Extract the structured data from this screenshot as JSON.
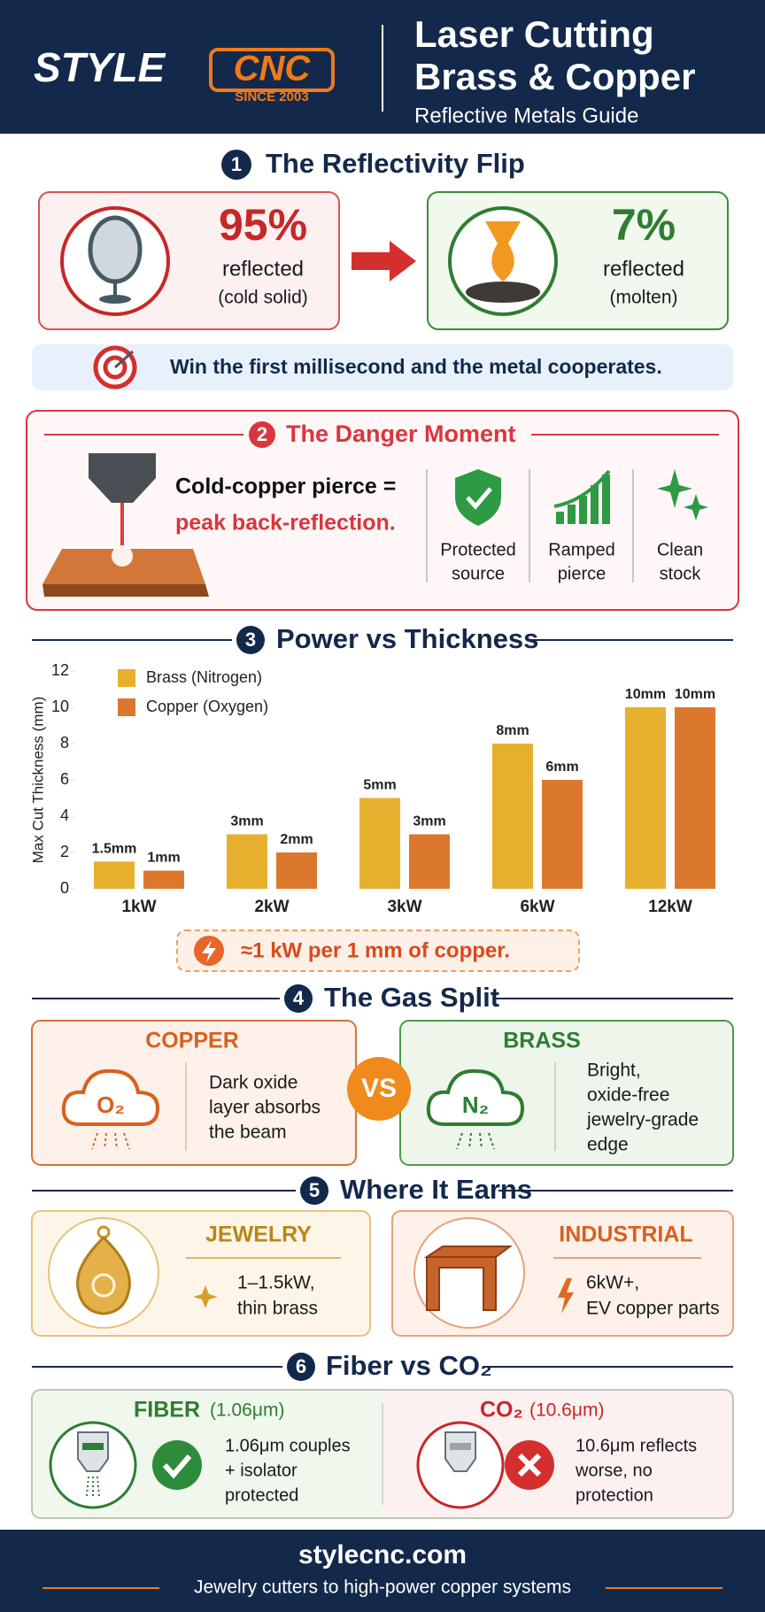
{
  "header": {
    "logo": {
      "style": "STYLE",
      "cnc": "CNC",
      "since": "SINCE 2003"
    },
    "title_lines": [
      "Laser Cutting",
      "Brass & Copper"
    ],
    "subtitle": "Reflective Metals Guide"
  },
  "reflectivity": {
    "number": "1",
    "title": "The Reflectivity Flip",
    "cold": {
      "percent": "95%",
      "label": "reflected",
      "state": "(cold solid)"
    },
    "molten": {
      "percent": "7%",
      "label": "reflected",
      "state": "(molten)"
    },
    "banner": "Win the first millisecond and the metal cooperates."
  },
  "danger": {
    "number": "2",
    "title": "The Danger Moment",
    "lines": [
      "Cold-copper pierce =",
      "peak back-reflection."
    ],
    "items": [
      {
        "lines": [
          "Protected",
          "source"
        ]
      },
      {
        "lines": [
          "Ramped",
          "pierce"
        ]
      },
      {
        "lines": [
          "Clean",
          "stock"
        ]
      }
    ]
  },
  "power": {
    "number": "3",
    "note": "≈1 kW per 1 mm of copper."
  },
  "chart_data": {
    "type": "bar",
    "title": "Power vs Thickness",
    "y_label": "Max Cut Thickness (mm)",
    "categories": [
      "1kW",
      "2kW",
      "3kW",
      "6kW",
      "12kW"
    ],
    "series": [
      {
        "name": "Brass (Nitrogen)",
        "color": "#e6b02e",
        "values": [
          1.5,
          3,
          5,
          8,
          10
        ],
        "value_labels": [
          "1.5mm",
          "3mm",
          "5mm",
          "8mm",
          "10mm"
        ]
      },
      {
        "name": "Copper (Oxygen)",
        "color": "#dc782e",
        "values": [
          1,
          2,
          3,
          6,
          10
        ],
        "value_labels": [
          "1mm",
          "2mm",
          "3mm",
          "6mm",
          "10mm"
        ]
      }
    ],
    "ylim": [
      0,
      12
    ],
    "yticks": [
      0,
      2,
      4,
      6,
      8,
      10,
      12
    ],
    "grid": false,
    "legend": "top-left"
  },
  "gas": {
    "number": "4",
    "title": "The Gas Split",
    "copper": {
      "name": "COPPER",
      "gas": "O₂",
      "lines": [
        "Dark oxide",
        "layer absorbs",
        "the beam"
      ]
    },
    "vs": "VS",
    "brass": {
      "name": "BRASS",
      "gas": "N₂",
      "lines": [
        "Bright,",
        "oxide-free",
        "jewelry-grade",
        "edge"
      ]
    }
  },
  "earn": {
    "number": "5",
    "title": "Where It Earns",
    "jewelry": {
      "name": "JEWELRY",
      "lines": [
        "1–1.5kW,",
        "thin brass"
      ]
    },
    "industrial": {
      "name": "INDUSTRIAL",
      "lines": [
        "6kW+,",
        "EV copper parts"
      ]
    }
  },
  "laser": {
    "number": "6",
    "title": "Fiber vs CO₂",
    "fiber": {
      "name": "FIBER",
      "wavelength": "(1.06μm)",
      "lines": [
        "1.06μm couples",
        "+ isolator",
        "protected"
      ]
    },
    "co2": {
      "name": "CO₂",
      "wavelength": "(10.6μm)",
      "lines": [
        "10.6μm reflects",
        "worse, no",
        "protection"
      ]
    }
  },
  "footer": {
    "site": "stylecnc.com",
    "tagline": "Jewelry cutters to high-power copper systems"
  }
}
